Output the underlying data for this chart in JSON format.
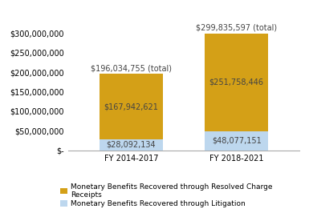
{
  "categories": [
    "FY 2014-2017",
    "FY 2018-2021"
  ],
  "litigation": [
    28092134,
    48077151
  ],
  "charge_receipts": [
    167942621,
    251758446
  ],
  "totals": [
    196034755,
    299835597
  ],
  "total_labels": [
    "$196,034,755 (total)",
    "$299,835,597 (total)"
  ],
  "litigation_labels": [
    "$28,092,134",
    "$48,077,151"
  ],
  "charge_labels": [
    "$167,942,621",
    "$251,758,446"
  ],
  "color_charge": "#D4A017",
  "color_litigation": "#BDD7EE",
  "bar_width": 0.6,
  "ylim": [
    0,
    340000000
  ],
  "yticks": [
    0,
    50000000,
    100000000,
    150000000,
    200000000,
    250000000,
    300000000
  ],
  "legend_charge": "Monetary Benefits Recovered through Resolved Charge\nReceipts",
  "legend_litigation": "Monetary Benefits Recovered through Litigation",
  "background_color": "#ffffff",
  "font_size": 7.0,
  "label_font_size": 7.0,
  "tick_font_size": 7.0
}
